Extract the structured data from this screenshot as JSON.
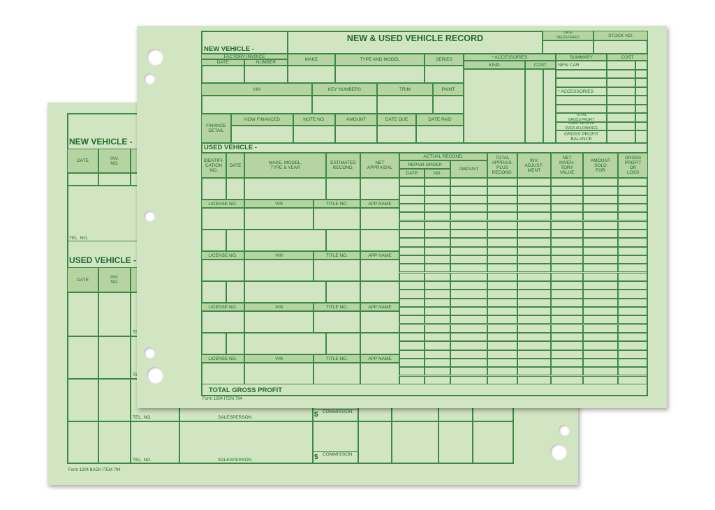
{
  "front": {
    "title": "NEW & USED VEHICLE RECORD",
    "date_registered": "DATE\nREGISTERED",
    "stock_no": "STOCK NO.",
    "new_vehicle_label": "NEW VEHICLE -",
    "factory_invoice": "FACTORY INVOICE",
    "date": "DATE",
    "number": "NUMBER",
    "make": "MAKE",
    "type_and_model": "TYPE AND MODEL",
    "series": "SERIES",
    "accessories": "*  ACCESSORIES",
    "kind": "KIND",
    "cost": "COST",
    "summary": "SUMMARY",
    "summary_cost": "COST",
    "vin": "VIN",
    "key_numbers": "KEY NUMBERS",
    "trim": "TRIM",
    "paint": "PAINT",
    "finance_detail": "FINANCE\nDETAIL",
    "how_financed": "HOW FINANCED",
    "note_no": "NOTE NO.",
    "amount": "AMOUNT",
    "date_due": "DATE DUE",
    "date_paid": "DATE PAID",
    "summary_items": [
      "NEW CAR",
      "* ACCESSORIES",
      "TOTAL\nGROSS PROFIT",
      "USED VEHICLE\nOVER-ALLOWANCE",
      "GROSS PROFIT\nBALANCE"
    ],
    "used_vehicle_label": "USED VEHICLE -",
    "used_headers": [
      "IDENTIFI-\nCATION\nNO.",
      "DATE",
      "MAKE, MODEL,\nTYPE & YEAR",
      "ESTIMATED\nRECOND.",
      "NET\nAPPRAISAL",
      "TOTAL\nAPPRAIS.\nPLUS\nRECOND.",
      "INV.\nADJUST-\nMENT",
      "NET\nINVEN-\nTORY\nVALUE",
      "AMOUNT\nSOLD\nFOR",
      "GROSS\nPROFIT\nOR\nLOSS"
    ],
    "actual_recond": "ACTUAL RECOND.",
    "repair_order": "REPAIR ORDER",
    "ro_date": "DATE",
    "ro_no": "NO.",
    "ro_amount": "AMOUNT",
    "license_headers": [
      "LICENSE NO.",
      "VIN",
      "TITLE NO.",
      "APP NAME"
    ],
    "total_gross_profit": "TOTAL GROSS PROFIT",
    "footer": "Form  1204   ITEM 794"
  },
  "back": {
    "new_vehicle_label": "NEW VEHICLE -",
    "used_vehicle_label": "USED VEHICLE -",
    "date": "DATE",
    "inv_no": "INV.\nNO.",
    "tel_no": "TEL. NO.",
    "salesperson": "SALESPERSON",
    "dollar": "$",
    "commission": "COMMISSION",
    "footer": "Form  1204 BACK   ITEM 794"
  },
  "colors": {
    "paper": "#d2e5c3",
    "header_fill": "#b6d3a2",
    "ink": "#1d6b2a"
  }
}
